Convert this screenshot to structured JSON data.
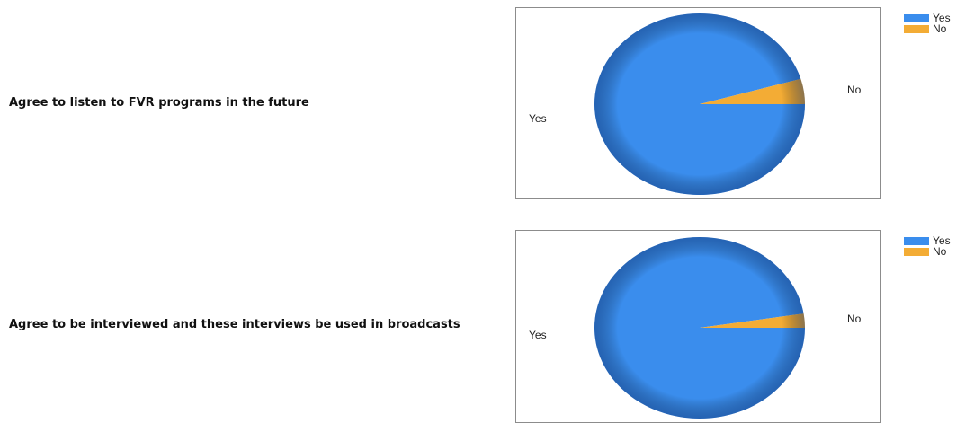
{
  "colors": {
    "yes": "#3a8ded",
    "no": "#f3ac35"
  },
  "chart_data": [
    {
      "type": "pie",
      "title": "Agree to listen to FVR programs in the future",
      "categories": [
        "Yes",
        "No"
      ],
      "values": [
        95.5,
        4.5
      ],
      "legend_position": "top-right"
    },
    {
      "type": "pie",
      "title": "Agree to be interviewed and these interviews be used in broadcasts",
      "categories": [
        "Yes",
        "No"
      ],
      "values": [
        97.5,
        2.5
      ],
      "legend_position": "top-right"
    }
  ]
}
